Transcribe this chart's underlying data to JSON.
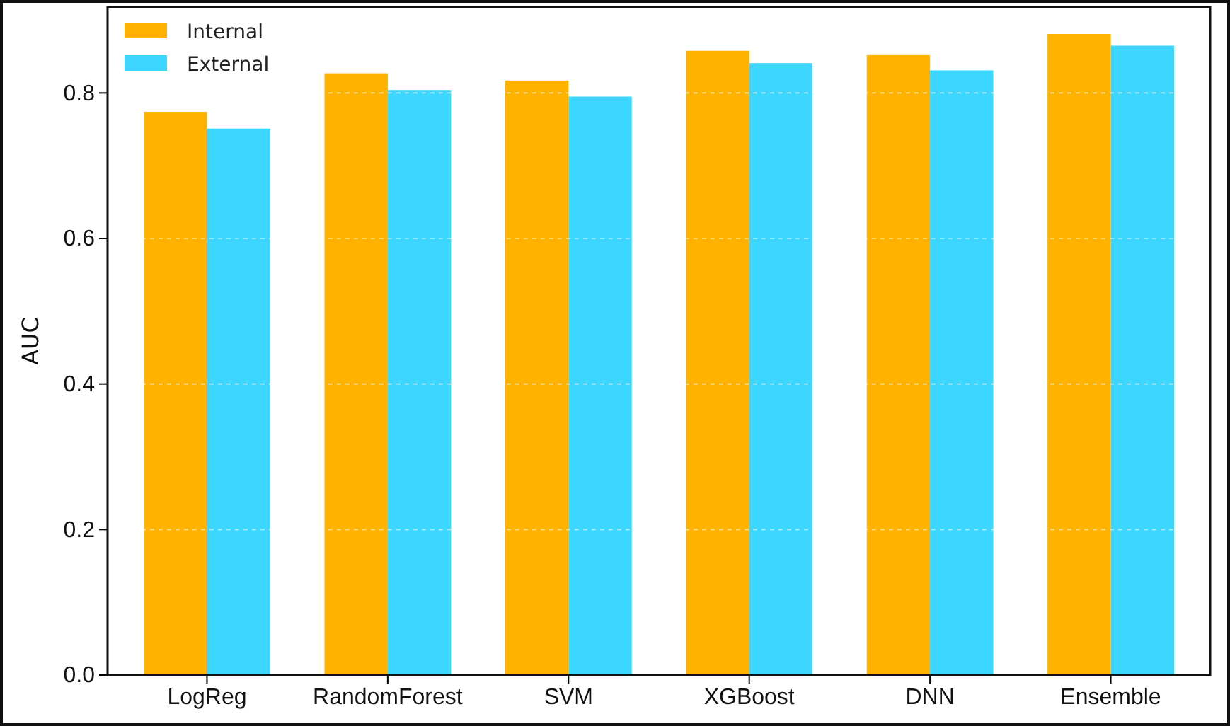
{
  "chart_data": {
    "type": "bar",
    "ylabel": "AUC",
    "categories": [
      "LogReg",
      "RandomForest",
      "SVM",
      "XGBoost",
      "DNN",
      "Ensemble"
    ],
    "series": [
      {
        "name": "Internal",
        "color": "#ffb300",
        "values": [
          0.774,
          0.827,
          0.817,
          0.858,
          0.852,
          0.881
        ]
      },
      {
        "name": "External",
        "color": "#3dd6ff",
        "values": [
          0.751,
          0.804,
          0.795,
          0.841,
          0.831,
          0.865
        ]
      }
    ],
    "ylim": [
      0,
      0.918
    ],
    "yticks": [
      {
        "value": 0,
        "label": "0.0"
      },
      {
        "value": 0.2,
        "label": "0.2"
      },
      {
        "value": 0.4,
        "label": "0.4"
      },
      {
        "value": 0.6,
        "label": "0.6"
      },
      {
        "value": 0.8,
        "label": "0.8"
      }
    ],
    "grid": "y",
    "legend": "top left"
  }
}
